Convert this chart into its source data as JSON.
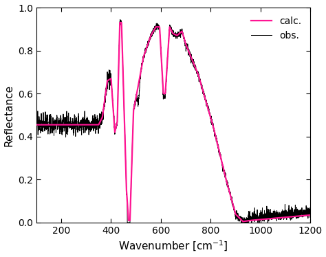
{
  "title": "",
  "xlabel": "Wavenumber [cm$^{-1}$]",
  "ylabel": "Reflectance",
  "xlim": [
    100,
    1200
  ],
  "ylim": [
    0.0,
    1.0
  ],
  "xticks": [
    200,
    400,
    600,
    800,
    1000,
    1200
  ],
  "yticks": [
    0.0,
    0.2,
    0.4,
    0.6,
    0.8,
    1.0
  ],
  "calc_color": "#FF1493",
  "obs_color": "#000000",
  "legend_labels": [
    "calc.",
    "obs."
  ],
  "figsize": [
    4.74,
    3.74
  ],
  "dpi": 100
}
